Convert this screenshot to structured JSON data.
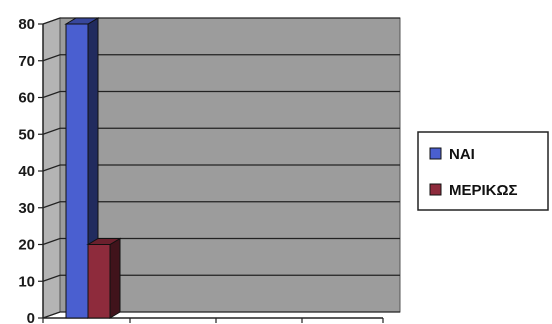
{
  "chart_data": {
    "type": "bar",
    "style": "3d-clustered-column",
    "categories": [
      ""
    ],
    "series": [
      {
        "name": "ΝΑΙ",
        "values": [
          80
        ],
        "color": "#4a5fd0"
      },
      {
        "name": "ΜΕΡΙΚΩΣ",
        "values": [
          20
        ],
        "color": "#8e2b3c"
      }
    ],
    "y_ticks": [
      "0",
      "10",
      "20",
      "30",
      "40",
      "50",
      "60",
      "70",
      "80"
    ],
    "ylim": [
      0,
      80
    ],
    "grid": true,
    "legend_position": "right",
    "plot_background": "#9c9c9c",
    "wall_color": "#b4b4b4",
    "gridline_color": "#222222"
  }
}
